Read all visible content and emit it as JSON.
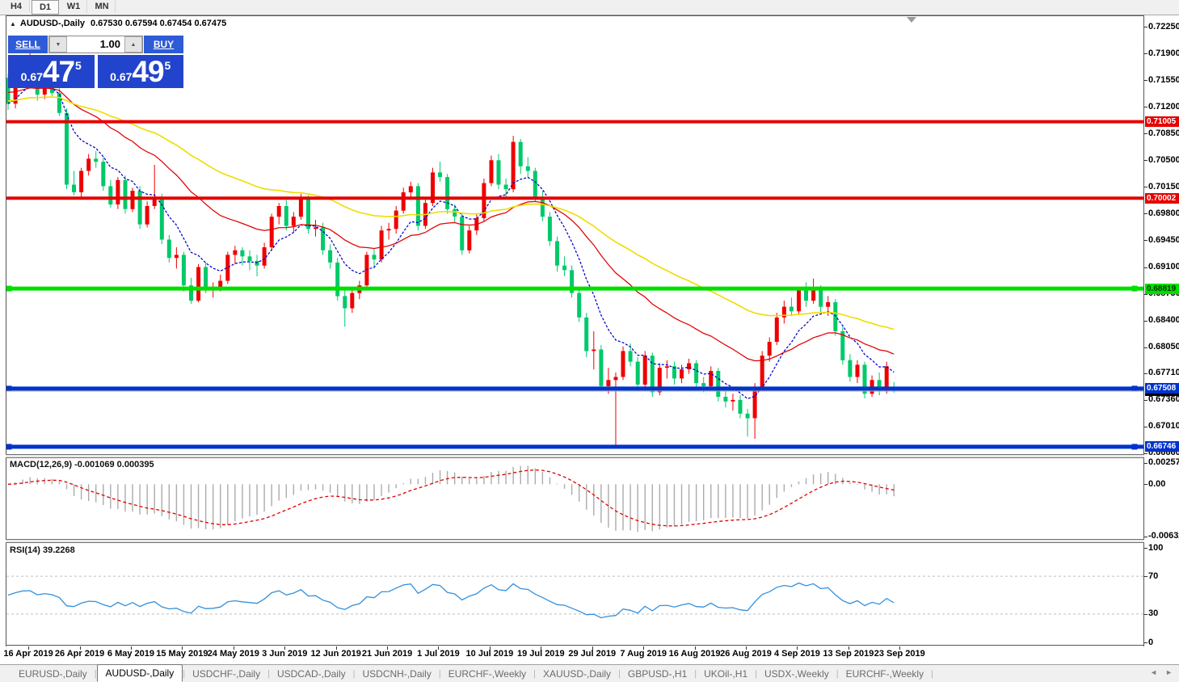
{
  "toolbar": {
    "timeframes": [
      {
        "label": "H4",
        "active": false
      },
      {
        "label": "D1",
        "active": true
      },
      {
        "label": "W1",
        "active": false
      },
      {
        "label": "MN",
        "active": false
      }
    ]
  },
  "chart_header": {
    "collapse_icon": "▲",
    "title": "AUDUSD-,Daily",
    "ohlc_text": "0.67530 0.67594 0.67454 0.67475"
  },
  "trade_panel": {
    "sell_label": "SELL",
    "buy_label": "BUY",
    "volume": "1.00",
    "down_icon": "▼",
    "up_icon": "▲",
    "sell_price": {
      "prefix": "0.67",
      "big": "47",
      "sup": "5"
    },
    "buy_price": {
      "prefix": "0.67",
      "big": "49",
      "sup": "5"
    }
  },
  "indicators": {
    "macd_label": "MACD(12,26,9) -0.001069 0.000395",
    "rsi_label": "RSI(14) 39.2268"
  },
  "levels": [
    {
      "value": 0.71005,
      "label": "0.71005",
      "color": "#E60000",
      "text_color": "#FFFFFF",
      "thickness": 4,
      "handles": false
    },
    {
      "value": 0.70002,
      "label": "0.70002",
      "color": "#E60000",
      "text_color": "#FFFFFF",
      "thickness": 4,
      "handles": false
    },
    {
      "value": 0.68819,
      "label": "0.68819",
      "color": "#00DF00",
      "text_color": "#003300",
      "thickness": 5,
      "handles": true
    },
    {
      "value": 0.67508,
      "label": "0.67508",
      "color": "#0033CC",
      "text_color": "#FFFFFF",
      "thickness": 5,
      "handles": true
    },
    {
      "value": 0.66746,
      "label": "0.66746",
      "color": "#0033CC",
      "text_color": "#FFFFFF",
      "thickness": 5,
      "handles": true
    }
  ],
  "current_price": {
    "value": 0.67475,
    "label": "0.67475",
    "line_color": "#A6A6A6",
    "label_bg": "#000000",
    "label_fg": "#FFFFFF"
  },
  "tabbar": {
    "tabs": [
      "EURUSD-,Daily",
      "AUDUSD-,Daily",
      "USDCHF-,Daily",
      "USDCAD-,Daily",
      "USDCNH-,Daily",
      "EURCHF-,Weekly",
      "XAUUSD-,Daily",
      "GBPUSD-,H1",
      "UKOil-,H1",
      "USDX-,Weekly",
      "EURCHF-,Weekly"
    ],
    "active_index": 1,
    "scroll_left_icon": "◄",
    "scroll_right_icon": "►"
  },
  "chart_data": {
    "type": "candlestick",
    "symbol": "AUDUSD-",
    "timeframe": "Daily",
    "current_bar": {
      "open": 0.6753,
      "high": 0.67594,
      "low": 0.67454,
      "close": 0.67475
    },
    "bid": 0.67475,
    "ask": 0.67495,
    "price_axis": {
      "ticks": [
        0.7225,
        0.719,
        0.7155,
        0.712,
        0.7085,
        0.705,
        0.7015,
        0.698,
        0.6945,
        0.691,
        0.6875,
        0.684,
        0.6805,
        0.6771,
        0.6736,
        0.6701,
        0.6666
      ]
    },
    "x_dates": [
      "16 Apr 2019",
      "26 Apr 2019",
      "6 May 2019",
      "15 May 2019",
      "24 May 2019",
      "3 Jun 2019",
      "12 Jun 2019",
      "21 Jun 2019",
      "1 Jul 2019",
      "10 Jul 2019",
      "19 Jul 2019",
      "29 Jul 2019",
      "7 Aug 2019",
      "16 Aug 2019",
      "26 Aug 2019",
      "4 Sep 2019",
      "13 Sep 2019",
      "23 Sep 2019"
    ],
    "date_tick_start_index": 2,
    "date_tick_step": 7,
    "candles": [
      [
        0.7158,
        0.7164,
        0.7116,
        0.7124
      ],
      [
        0.7124,
        0.7156,
        0.7118,
        0.7152
      ],
      [
        0.7152,
        0.7178,
        0.7147,
        0.7173
      ],
      [
        0.7173,
        0.7193,
        0.7166,
        0.7176
      ],
      [
        0.7176,
        0.7183,
        0.7128,
        0.7136
      ],
      [
        0.7136,
        0.7152,
        0.713,
        0.7148
      ],
      [
        0.7148,
        0.7156,
        0.7134,
        0.7138
      ],
      [
        0.7138,
        0.7145,
        0.7108,
        0.7112
      ],
      [
        0.7112,
        0.7118,
        0.7012,
        0.7018
      ],
      [
        0.7018,
        0.7036,
        0.7004,
        0.7008
      ],
      [
        0.7008,
        0.704,
        0.7002,
        0.7036
      ],
      [
        0.7036,
        0.7058,
        0.703,
        0.7052
      ],
      [
        0.7052,
        0.7062,
        0.704,
        0.7048
      ],
      [
        0.7048,
        0.7054,
        0.701,
        0.7016
      ],
      [
        0.7016,
        0.7024,
        0.6988,
        0.6992
      ],
      [
        0.6992,
        0.7028,
        0.6986,
        0.7024
      ],
      [
        0.7024,
        0.703,
        0.698,
        0.6986
      ],
      [
        0.6986,
        0.7014,
        0.6982,
        0.701
      ],
      [
        0.701,
        0.7016,
        0.696,
        0.6966
      ],
      [
        0.6966,
        0.6996,
        0.6962,
        0.699
      ],
      [
        0.699,
        0.7044,
        0.6986,
        0.7002
      ],
      [
        0.7002,
        0.7006,
        0.694,
        0.6946
      ],
      [
        0.6946,
        0.6952,
        0.6916,
        0.6922
      ],
      [
        0.6922,
        0.6936,
        0.6908,
        0.6926
      ],
      [
        0.6926,
        0.693,
        0.6878,
        0.6886
      ],
      [
        0.6886,
        0.6896,
        0.6862,
        0.6866
      ],
      [
        0.6866,
        0.6914,
        0.6864,
        0.691
      ],
      [
        0.691,
        0.6916,
        0.6876,
        0.6882
      ],
      [
        0.6882,
        0.689,
        0.687,
        0.6884
      ],
      [
        0.6884,
        0.69,
        0.6878,
        0.6892
      ],
      [
        0.6892,
        0.693,
        0.6888,
        0.6926
      ],
      [
        0.6926,
        0.6938,
        0.6914,
        0.6932
      ],
      [
        0.6932,
        0.6936,
        0.6912,
        0.6924
      ],
      [
        0.6924,
        0.6932,
        0.6906,
        0.6918
      ],
      [
        0.6918,
        0.6926,
        0.6898,
        0.6912
      ],
      [
        0.6912,
        0.6942,
        0.6908,
        0.6936
      ],
      [
        0.6936,
        0.698,
        0.6932,
        0.6976
      ],
      [
        0.6976,
        0.6994,
        0.6966,
        0.699
      ],
      [
        0.699,
        0.6998,
        0.6958,
        0.6964
      ],
      [
        0.6964,
        0.6982,
        0.6956,
        0.6976
      ],
      [
        0.6976,
        0.7006,
        0.6972,
        0.7
      ],
      [
        0.7,
        0.7004,
        0.6954,
        0.696
      ],
      [
        0.696,
        0.6972,
        0.695,
        0.6962
      ],
      [
        0.6962,
        0.6968,
        0.6926,
        0.6932
      ],
      [
        0.6932,
        0.694,
        0.6908,
        0.6916
      ],
      [
        0.6916,
        0.6922,
        0.6866,
        0.6872
      ],
      [
        0.6872,
        0.688,
        0.6832,
        0.6856
      ],
      [
        0.6856,
        0.6882,
        0.685,
        0.6876
      ],
      [
        0.6876,
        0.6892,
        0.6868,
        0.6886
      ],
      [
        0.6886,
        0.693,
        0.6882,
        0.6926
      ],
      [
        0.6926,
        0.6934,
        0.6908,
        0.692
      ],
      [
        0.692,
        0.6964,
        0.6916,
        0.6958
      ],
      [
        0.6958,
        0.6968,
        0.6946,
        0.696
      ],
      [
        0.696,
        0.699,
        0.6954,
        0.6984
      ],
      [
        0.6984,
        0.7014,
        0.698,
        0.7008
      ],
      [
        0.7008,
        0.7022,
        0.6998,
        0.7016
      ],
      [
        0.7016,
        0.702,
        0.6958,
        0.6964
      ],
      [
        0.6964,
        0.6998,
        0.696,
        0.6994
      ],
      [
        0.6994,
        0.704,
        0.699,
        0.7034
      ],
      [
        0.7034,
        0.7048,
        0.7022,
        0.7028
      ],
      [
        0.7028,
        0.7032,
        0.698,
        0.6986
      ],
      [
        0.6986,
        0.6992,
        0.6968,
        0.6976
      ],
      [
        0.6976,
        0.698,
        0.6926,
        0.6932
      ],
      [
        0.6932,
        0.6964,
        0.6928,
        0.6958
      ],
      [
        0.6958,
        0.698,
        0.6952,
        0.6974
      ],
      [
        0.6974,
        0.7026,
        0.697,
        0.702
      ],
      [
        0.702,
        0.7056,
        0.7016,
        0.705
      ],
      [
        0.705,
        0.7058,
        0.7012,
        0.7018
      ],
      [
        0.7018,
        0.7026,
        0.7,
        0.7012
      ],
      [
        0.7012,
        0.7082,
        0.7008,
        0.7074
      ],
      [
        0.7074,
        0.7078,
        0.7032,
        0.7042
      ],
      [
        0.7042,
        0.7054,
        0.7028,
        0.7036
      ],
      [
        0.7036,
        0.704,
        0.6996,
        0.7002
      ],
      [
        0.7002,
        0.701,
        0.697,
        0.6976
      ],
      [
        0.6976,
        0.6982,
        0.6938,
        0.6944
      ],
      [
        0.6944,
        0.695,
        0.6904,
        0.6912
      ],
      [
        0.6912,
        0.6924,
        0.6898,
        0.6906
      ],
      [
        0.6906,
        0.6912,
        0.687,
        0.6876
      ],
      [
        0.6876,
        0.6882,
        0.6838,
        0.6844
      ],
      [
        0.6844,
        0.685,
        0.6792,
        0.68
      ],
      [
        0.68,
        0.6826,
        0.6776,
        0.6802
      ],
      [
        0.6802,
        0.6808,
        0.6748,
        0.6754
      ],
      [
        0.6754,
        0.6778,
        0.6744,
        0.6762
      ],
      [
        0.6762,
        0.6772,
        0.6677,
        0.6766
      ],
      [
        0.6766,
        0.6806,
        0.6762,
        0.68
      ],
      [
        0.68,
        0.681,
        0.678,
        0.6786
      ],
      [
        0.6786,
        0.6792,
        0.6748,
        0.6756
      ],
      [
        0.6756,
        0.68,
        0.6752,
        0.6794
      ],
      [
        0.6794,
        0.6798,
        0.674,
        0.6746
      ],
      [
        0.6746,
        0.6784,
        0.6742,
        0.6778
      ],
      [
        0.6778,
        0.6788,
        0.6764,
        0.678
      ],
      [
        0.678,
        0.6786,
        0.6756,
        0.6764
      ],
      [
        0.6764,
        0.6782,
        0.6758,
        0.6776
      ],
      [
        0.6776,
        0.679,
        0.677,
        0.6784
      ],
      [
        0.6784,
        0.6788,
        0.6752,
        0.6758
      ],
      [
        0.6758,
        0.6766,
        0.6746,
        0.6754
      ],
      [
        0.6754,
        0.678,
        0.675,
        0.6774
      ],
      [
        0.6774,
        0.6778,
        0.6734,
        0.674
      ],
      [
        0.674,
        0.675,
        0.6726,
        0.6734
      ],
      [
        0.6734,
        0.6744,
        0.6722,
        0.6736
      ],
      [
        0.6736,
        0.6742,
        0.6712,
        0.6718
      ],
      [
        0.6718,
        0.6724,
        0.6688,
        0.6712
      ],
      [
        0.6712,
        0.6758,
        0.6685,
        0.6752
      ],
      [
        0.6752,
        0.68,
        0.6748,
        0.6794
      ],
      [
        0.6794,
        0.6818,
        0.6786,
        0.6812
      ],
      [
        0.6812,
        0.685,
        0.6808,
        0.6844
      ],
      [
        0.6844,
        0.6866,
        0.6836,
        0.6858
      ],
      [
        0.6858,
        0.687,
        0.6846,
        0.6852
      ],
      [
        0.6852,
        0.6884,
        0.6848,
        0.688
      ],
      [
        0.688,
        0.689,
        0.6858,
        0.6866
      ],
      [
        0.6866,
        0.6895,
        0.6862,
        0.6882
      ],
      [
        0.6882,
        0.6886,
        0.685,
        0.6858
      ],
      [
        0.6858,
        0.6872,
        0.6846,
        0.6864
      ],
      [
        0.6864,
        0.6868,
        0.682,
        0.6826
      ],
      [
        0.6826,
        0.6832,
        0.6782,
        0.6788
      ],
      [
        0.6788,
        0.6796,
        0.676,
        0.6766
      ],
      [
        0.6766,
        0.6788,
        0.6758,
        0.6782
      ],
      [
        0.6782,
        0.6786,
        0.6738,
        0.6744
      ],
      [
        0.6744,
        0.6768,
        0.674,
        0.6762
      ],
      [
        0.6762,
        0.6772,
        0.6742,
        0.6748
      ],
      [
        0.6748,
        0.6786,
        0.6744,
        0.678
      ],
      [
        0.6753,
        0.67594,
        0.67454,
        0.67475
      ]
    ],
    "moving_averages": [
      {
        "name": "fast",
        "period": 8,
        "color": "#0000C8",
        "style": "dotted"
      },
      {
        "name": "medium",
        "period": 26,
        "color": "#E00000",
        "style": "solid"
      },
      {
        "name": "slow",
        "period": 55,
        "color": "#EFDC00",
        "style": "solid"
      }
    ],
    "macd": {
      "label": "MACD(12,26,9)",
      "fast": 12,
      "slow": 26,
      "signal_period": 9,
      "main_value": -0.001069,
      "signal_value": 0.000395,
      "axis_ticks": [
        0.002574,
        0,
        -0.006326
      ],
      "axis_labels": [
        "0.002574",
        "0.00",
        "-0.006326"
      ],
      "hist_color": "#ABABAB",
      "signal_color": "#E00000"
    },
    "rsi": {
      "period": 14,
      "value": 39.2268,
      "axis_ticks": [
        100,
        70,
        30,
        0
      ],
      "guide_levels": [
        70,
        30
      ],
      "line_color": "#3390DC",
      "guide_color": "#BFBFBF"
    },
    "colors": {
      "bull": "#EE0000",
      "bear": "#00C96A"
    }
  }
}
